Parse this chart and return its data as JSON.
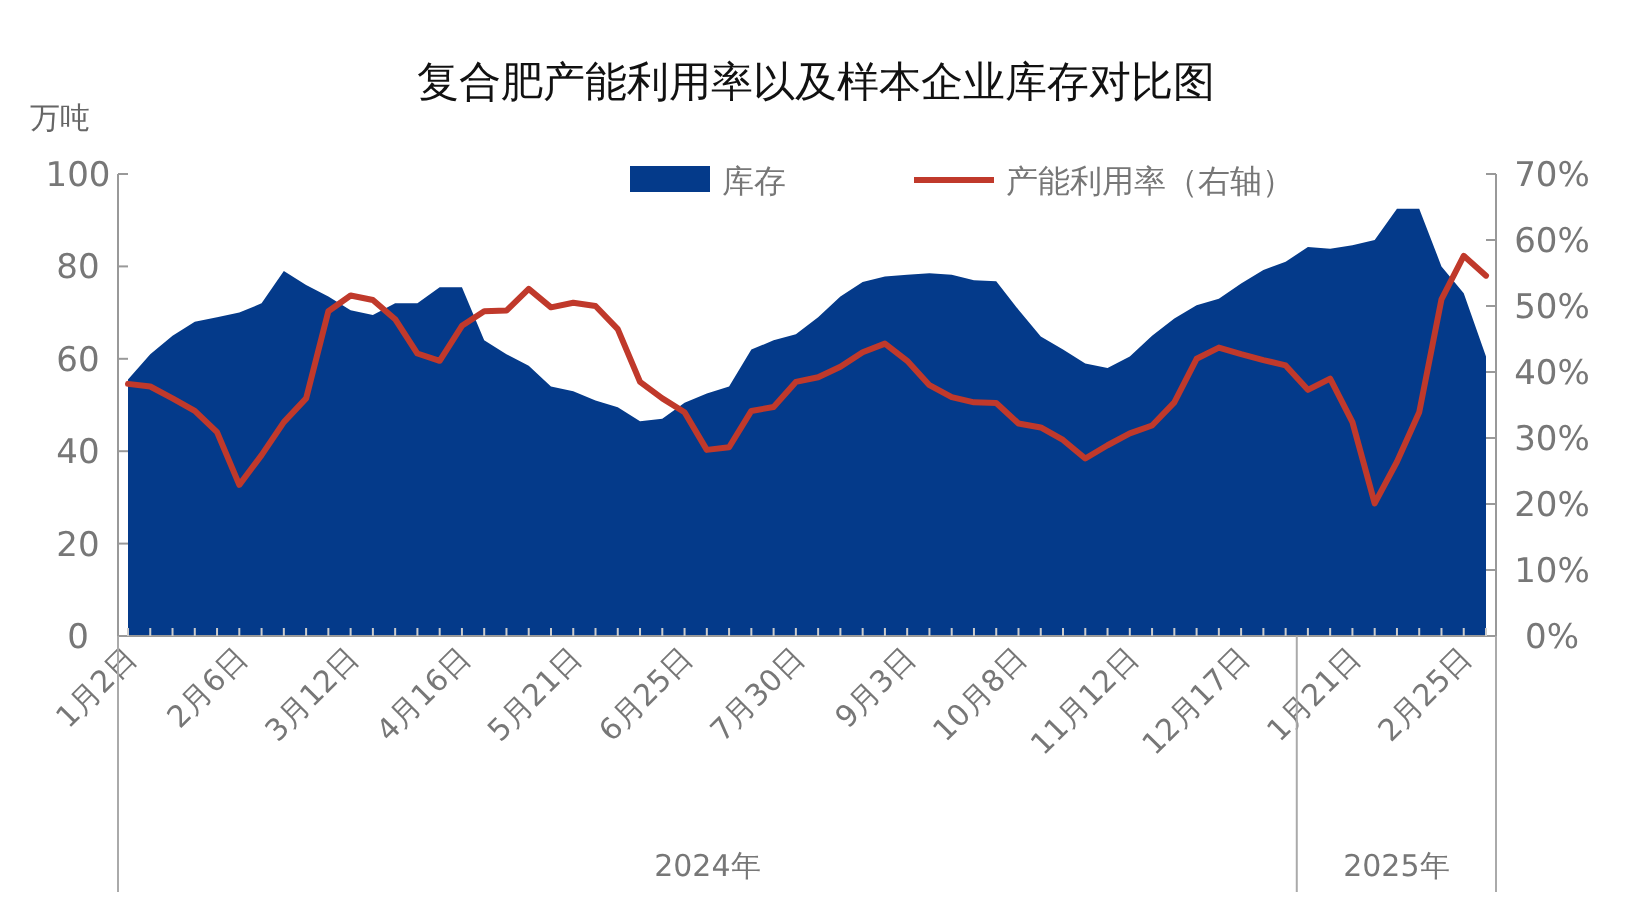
{
  "chart_data": {
    "type": "area",
    "title": "复合肥产能利用率以及样本企业库存对比图",
    "ylabel": "万吨",
    "categories": [
      "1月2日",
      null,
      null,
      null,
      null,
      "2月6日",
      null,
      null,
      null,
      null,
      "3月12日",
      null,
      null,
      null,
      null,
      "4月16日",
      null,
      null,
      null,
      null,
      "5月21日",
      null,
      null,
      null,
      null,
      "6月25日",
      null,
      null,
      null,
      null,
      "7月30日",
      null,
      null,
      null,
      null,
      "9月3日",
      null,
      null,
      null,
      null,
      "10月8日",
      null,
      null,
      null,
      null,
      "11月12日",
      null,
      null,
      null,
      null,
      "12月17日",
      null,
      null,
      null,
      null,
      "1月21日",
      null,
      null,
      null,
      null,
      "2月25日",
      null
    ],
    "series": [
      {
        "name": "库存",
        "color": "#043a8a",
        "values": [
          55.5,
          61,
          65,
          68,
          69,
          70,
          72,
          79,
          76,
          73.5,
          70.5,
          69.5,
          72,
          72,
          75.5,
          75.5,
          64,
          61,
          58.5,
          54,
          53,
          51,
          49.5,
          46.5,
          47,
          50.5,
          52.5,
          54,
          62,
          64,
          65.3,
          69,
          73.5,
          76.6,
          77.8,
          78.2,
          78.5,
          78.2,
          77,
          76.8,
          70.6,
          64.8,
          62,
          59,
          58,
          60.5,
          65,
          68.7,
          71.6,
          73,
          76.3,
          79.2,
          81,
          84.2,
          83.8,
          84.6,
          85.7,
          92.5,
          92.5,
          80,
          74.2,
          60.5
        ]
      },
      {
        "name": "产能利用率（右轴）",
        "type": "line",
        "axis": "y2",
        "color": "#c0392b",
        "values": [
          38.2,
          37.8,
          36,
          34.1,
          30.9,
          22.9,
          27.4,
          32.4,
          36,
          49.2,
          51.6,
          50.9,
          48,
          42.8,
          41.7,
          47,
          49.2,
          49.3,
          52.6,
          49.8,
          50.5,
          50,
          46.5,
          38.5,
          36,
          33.9,
          28.2,
          28.6,
          34.1,
          34.7,
          38.5,
          39.2,
          40.8,
          43,
          44.3,
          41.7,
          38,
          36.2,
          35.4,
          35.3,
          32.2,
          31.6,
          29.7,
          26.9,
          28.9,
          30.7,
          31.9,
          35.4,
          42,
          43.7,
          42.7,
          41.8,
          41,
          37.3,
          39,
          32.4,
          20.1,
          26.4,
          33.9,
          51,
          57.6,
          54.6
        ]
      }
    ],
    "ylim": [
      0,
      100
    ],
    "yticks": [
      0,
      20,
      40,
      60,
      80,
      100
    ],
    "y2lim": [
      0,
      70
    ],
    "y2ticks": [
      {
        "value": 0,
        "label": "0%"
      },
      {
        "value": 10,
        "label": "10%"
      },
      {
        "value": 20,
        "label": "20%"
      },
      {
        "value": 30,
        "label": "30%"
      },
      {
        "value": 40,
        "label": "40%"
      },
      {
        "value": 50,
        "label": "50%"
      },
      {
        "value": 60,
        "label": "60%"
      },
      {
        "value": 70,
        "label": "70%"
      }
    ],
    "annotations": [
      "2024年",
      "2025年"
    ],
    "legend": "top",
    "grid": false,
    "line_style": "solid"
  }
}
